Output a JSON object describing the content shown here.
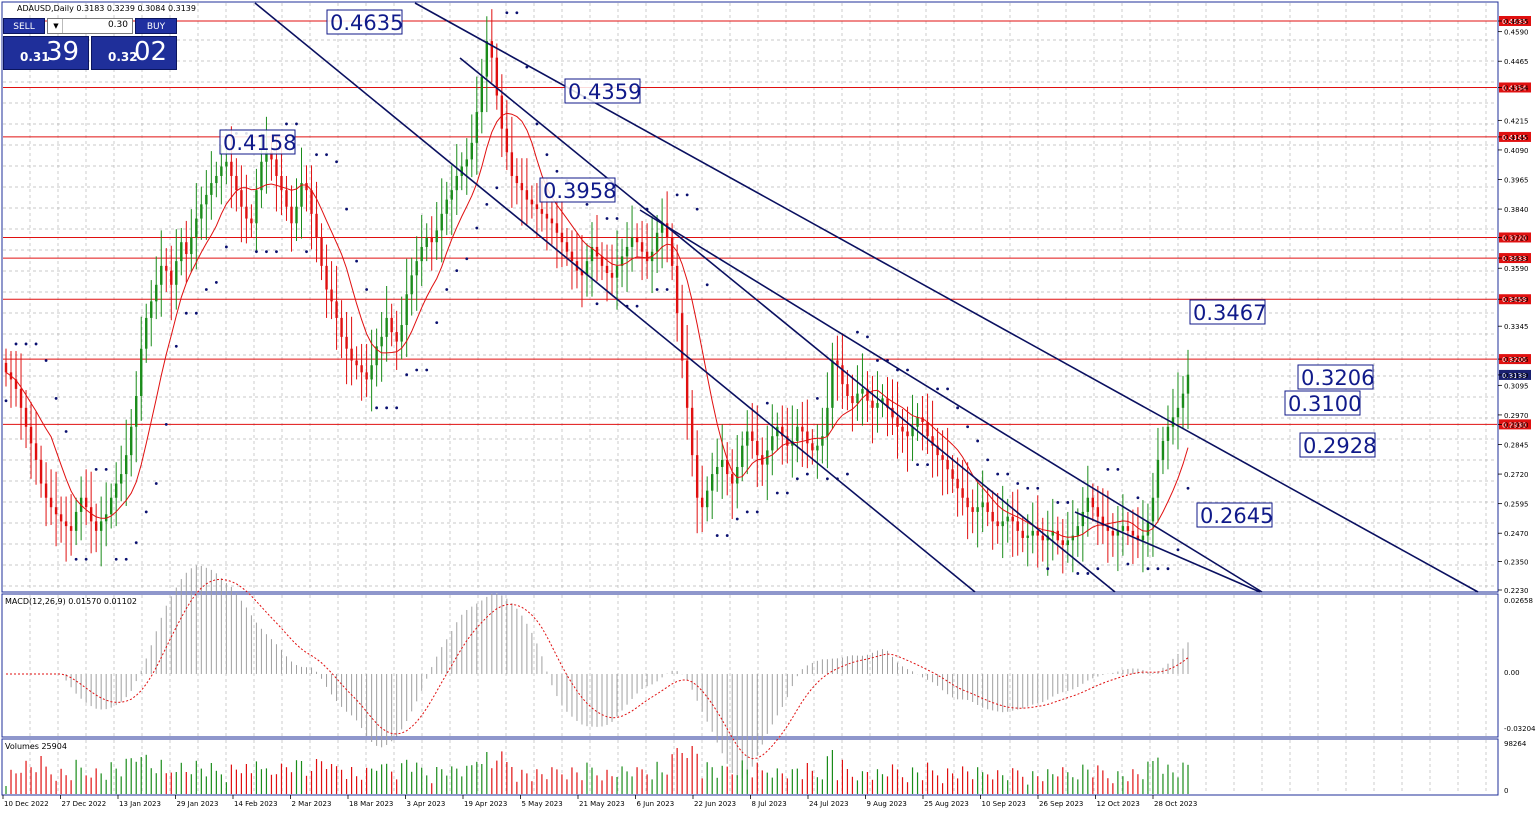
{
  "header": {
    "title": "ADAUSD,Daily  0.3183 0.3239 0.3084 0.3139"
  },
  "trade": {
    "sell_label": "SELL",
    "buy_label": "BUY",
    "lot_value": "0.30",
    "sell_small": "0.31",
    "sell_big": "39",
    "buy_small": "0.32",
    "buy_big": "02"
  },
  "price_axis": [
    "0.4635",
    "0.4590",
    "0.4465",
    "0.4354",
    "0.4215",
    "0.4145",
    "0.4090",
    "0.3965",
    "0.3840",
    "0.3720",
    "0.3633",
    "0.3590",
    "0.3459",
    "0.3345",
    "0.3206",
    "0.3139",
    "0.3095",
    "0.2970",
    "0.2930",
    "0.2845",
    "0.2720",
    "0.2595",
    "0.2470",
    "0.2350",
    "0.2230"
  ],
  "red_levels": [
    "0.4635",
    "0.4354",
    "0.4145",
    "0.3720",
    "0.3633",
    "0.3459",
    "0.3206",
    "0.2930"
  ],
  "current_price": "0.3139",
  "callouts": [
    "0.4635",
    "0.4359",
    "0.4158",
    "0.3958",
    "0.3467",
    "0.3206",
    "0.3100",
    "0.2928",
    "0.2645"
  ],
  "macd": {
    "label": "MACD(12,26,9) 0.01570 0.01102",
    "axis": [
      "0.02658",
      "0.00",
      "-0.03204"
    ]
  },
  "volumes": {
    "label": "Volumes 25904",
    "axis": [
      "98264",
      "0"
    ]
  },
  "dates": [
    "10 Dec 2022",
    "27 Dec 2022",
    "13 Jan 2023",
    "29 Jan 2023",
    "14 Feb 2023",
    "2 Mar 2023",
    "18 Mar 2023",
    "3 Apr 2023",
    "19 Apr 2023",
    "5 May 2023",
    "21 May 2023",
    "6 Jun 2023",
    "22 Jun 2023",
    "8 Jul 2023",
    "24 Jul 2023",
    "9 Aug 2023",
    "25 Aug 2023",
    "10 Sep 2023",
    "26 Sep 2023",
    "12 Oct 2023",
    "28 Oct 2023"
  ],
  "colors": {
    "bull": "#1a8c1a",
    "bear": "#e01010",
    "level": "#e01010",
    "trend": "#0a1060",
    "grid": "#b8b8b8",
    "panel_border": "#1f2f9a"
  },
  "chart_data": {
    "type": "candlestick",
    "symbol": "ADAUSD",
    "timeframe": "Daily",
    "ohlc_last": {
      "open": 0.3183,
      "high": 0.3239,
      "low": 0.3084,
      "close": 0.3139
    },
    "price_range": [
      0.223,
      0.4635
    ],
    "series_close": [
      0.315,
      0.312,
      0.308,
      0.3,
      0.292,
      0.285,
      0.278,
      0.268,
      0.262,
      0.258,
      0.255,
      0.252,
      0.25,
      0.248,
      0.256,
      0.262,
      0.258,
      0.252,
      0.248,
      0.252,
      0.255,
      0.262,
      0.268,
      0.272,
      0.28,
      0.292,
      0.305,
      0.325,
      0.338,
      0.345,
      0.352,
      0.36,
      0.358,
      0.352,
      0.362,
      0.37,
      0.365,
      0.372,
      0.38,
      0.386,
      0.39,
      0.395,
      0.398,
      0.402,
      0.404,
      0.398,
      0.392,
      0.385,
      0.38,
      0.378,
      0.392,
      0.404,
      0.408,
      0.405,
      0.398,
      0.392,
      0.385,
      0.378,
      0.385,
      0.395,
      0.392,
      0.382,
      0.372,
      0.36,
      0.35,
      0.345,
      0.338,
      0.33,
      0.325,
      0.32,
      0.318,
      0.315,
      0.312,
      0.318,
      0.326,
      0.33,
      0.338,
      0.332,
      0.328,
      0.335,
      0.348,
      0.356,
      0.362,
      0.368,
      0.372,
      0.37,
      0.375,
      0.382,
      0.388,
      0.392,
      0.398,
      0.402,
      0.405,
      0.412,
      0.425,
      0.44,
      0.455,
      0.448,
      0.432,
      0.418,
      0.408,
      0.398,
      0.395,
      0.392,
      0.388,
      0.386,
      0.384,
      0.382,
      0.38,
      0.378,
      0.374,
      0.37,
      0.366,
      0.362,
      0.358,
      0.356,
      0.362,
      0.368,
      0.364,
      0.36,
      0.357,
      0.355,
      0.36,
      0.364,
      0.368,
      0.372,
      0.37,
      0.366,
      0.362,
      0.366,
      0.374,
      0.378,
      0.372,
      0.36,
      0.34,
      0.32,
      0.3,
      0.28,
      0.262,
      0.258,
      0.265,
      0.272,
      0.275,
      0.278,
      0.272,
      0.268,
      0.275,
      0.284,
      0.29,
      0.286,
      0.28,
      0.276,
      0.282,
      0.288,
      0.292,
      0.288,
      0.284,
      0.286,
      0.292,
      0.29,
      0.285,
      0.282,
      0.284,
      0.288,
      0.3,
      0.32,
      0.318,
      0.31,
      0.305,
      0.302,
      0.306,
      0.308,
      0.303,
      0.3,
      0.302,
      0.304,
      0.3,
      0.296,
      0.292,
      0.29,
      0.288,
      0.292,
      0.296,
      0.294,
      0.288,
      0.284,
      0.28,
      0.278,
      0.274,
      0.27,
      0.266,
      0.262,
      0.258,
      0.256,
      0.258,
      0.26,
      0.256,
      0.252,
      0.25,
      0.252,
      0.254,
      0.252,
      0.248,
      0.245,
      0.246,
      0.248,
      0.246,
      0.244,
      0.246,
      0.248,
      0.244,
      0.242,
      0.244,
      0.246,
      0.25,
      0.256,
      0.262,
      0.258,
      0.254,
      0.25,
      0.248,
      0.246,
      0.248,
      0.25,
      0.248,
      0.246,
      0.244,
      0.246,
      0.252,
      0.262,
      0.278,
      0.286,
      0.292,
      0.296,
      0.3,
      0.306,
      0.314
    ],
    "macd_hist_last": 0.0157,
    "macd_signal_last": 0.01102,
    "volume_last": 25904,
    "volume_axis_max": 98264
  }
}
